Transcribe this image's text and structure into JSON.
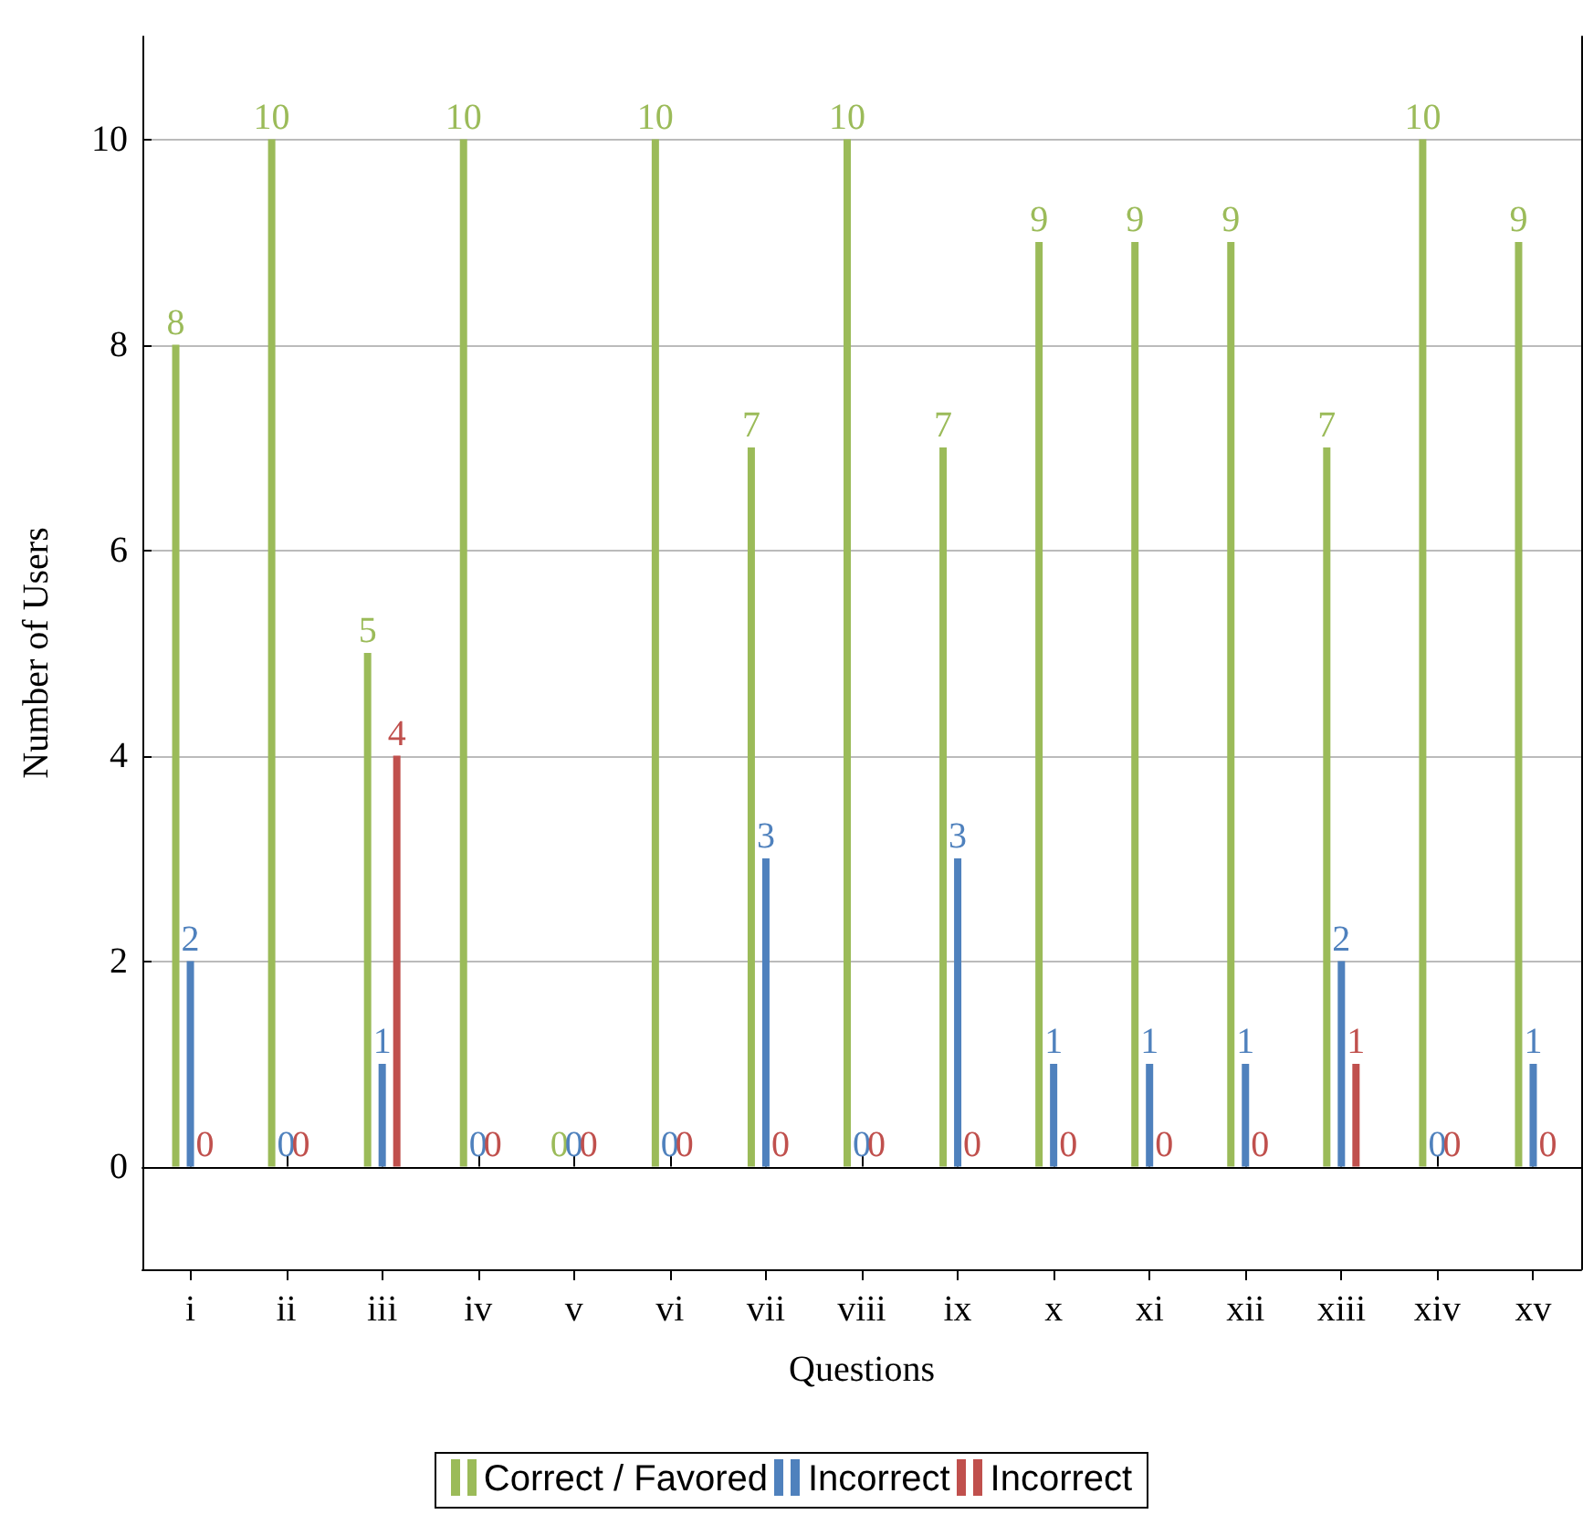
{
  "chart_data": {
    "type": "bar",
    "xlabel": "Questions",
    "ylabel": "Number of Users",
    "categories": [
      "i",
      "ii",
      "iii",
      "iv",
      "v",
      "vi",
      "vii",
      "viii",
      "ix",
      "x",
      "xi",
      "xii",
      "xiii",
      "xiv",
      "xv"
    ],
    "series": [
      {
        "name": "Correct / Favored",
        "color": "#9bbb59",
        "values": [
          8,
          10,
          5,
          10,
          0,
          10,
          7,
          10,
          7,
          9,
          9,
          9,
          7,
          10,
          9
        ]
      },
      {
        "name": "Incorrect",
        "color": "#4f81bd",
        "values": [
          2,
          0,
          1,
          0,
          0,
          0,
          3,
          0,
          3,
          1,
          1,
          1,
          2,
          0,
          1
        ]
      },
      {
        "name": "Incorrect",
        "color": "#c0504d",
        "values": [
          0,
          0,
          4,
          0,
          0,
          0,
          0,
          0,
          0,
          0,
          0,
          0,
          1,
          0,
          0
        ]
      }
    ],
    "ylim": [
      -1,
      11
    ],
    "yticks": [
      0,
      2,
      4,
      6,
      8,
      10
    ],
    "grid": "y",
    "legend": "bottom",
    "data_labels": true
  }
}
